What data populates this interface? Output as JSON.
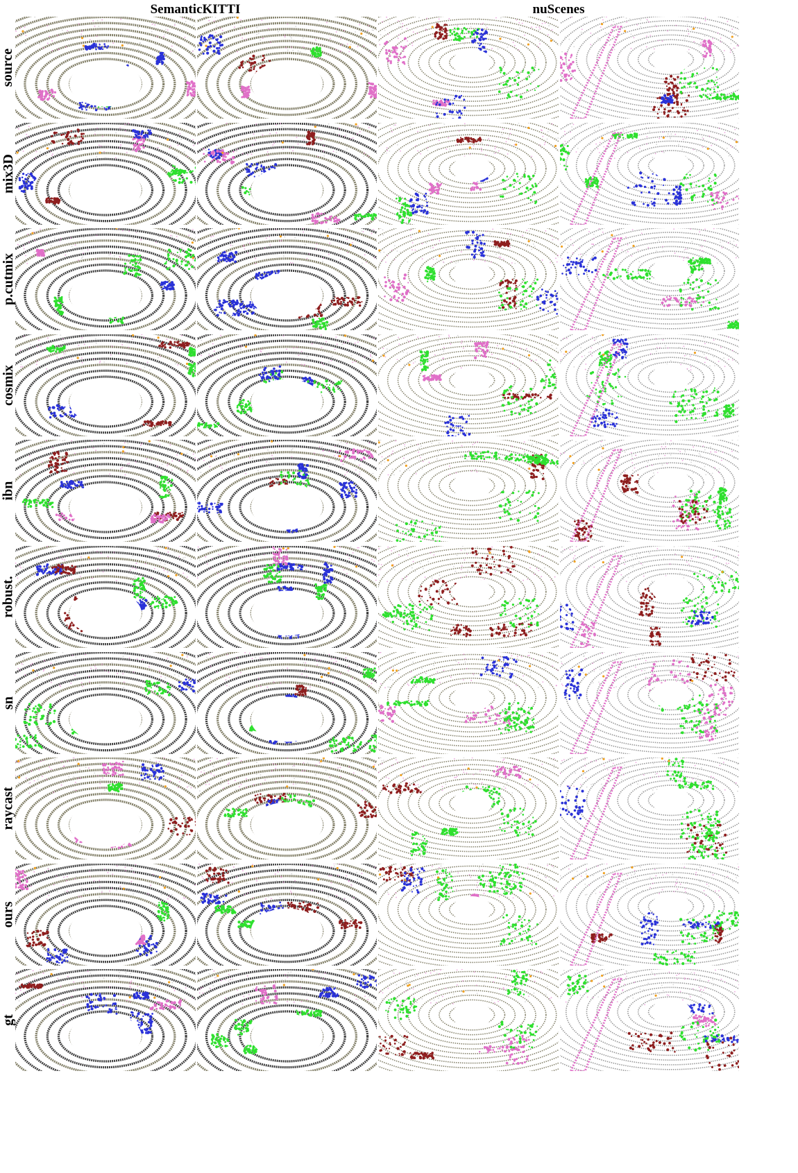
{
  "column_groups": [
    "SemanticKITTI",
    "nuScenes"
  ],
  "rows": [
    "source",
    "mix3D",
    "p.cutmix",
    "cosmix",
    "ibn",
    "robust.",
    "sn",
    "raycast",
    "ours",
    "gt"
  ],
  "palette": {
    "ground_olive": "#77735a",
    "ground_dark": "#2e2e2e",
    "ground_gray": "#8c8c8c",
    "car_blue": "#2a32d8",
    "vegetation_green": "#2fe02f",
    "building_red": "#8e1e1e",
    "sidewalk_pink": "#e070c8",
    "pole_orange": "#f0a020"
  }
}
